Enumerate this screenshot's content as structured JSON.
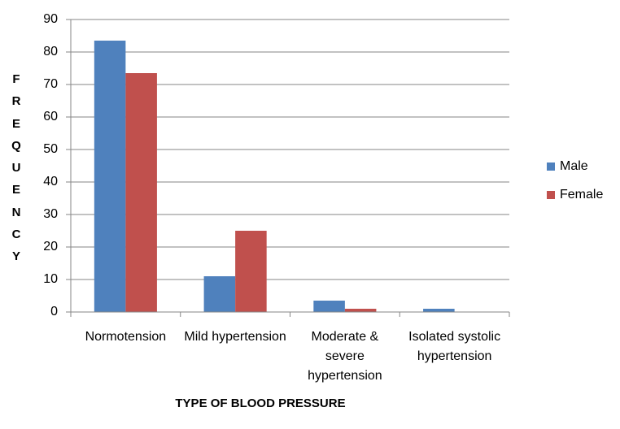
{
  "chart_data": {
    "type": "bar",
    "x_label": "TYPE OF BLOOD PRESSURE",
    "y_label": "FREQUENCY",
    "categories": [
      "Normotension",
      "Mild hypertension",
      "Moderate & severe hypertension",
      "Isolated systolic hypertension"
    ],
    "series": [
      {
        "name": "Male",
        "color": "#4f81bd",
        "values": [
          83.5,
          11,
          3.5,
          1
        ]
      },
      {
        "name": "Female",
        "color": "#c0504d",
        "values": [
          73.5,
          25,
          1,
          0
        ]
      }
    ],
    "ylim": [
      0,
      90
    ],
    "yticks": [
      0,
      10,
      20,
      30,
      40,
      50,
      60,
      70,
      80,
      90
    ],
    "grid": true,
    "legend": "right"
  }
}
